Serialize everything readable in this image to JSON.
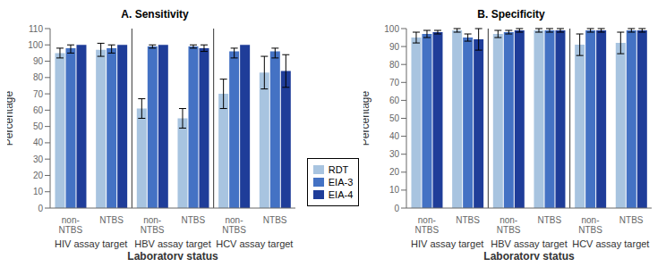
{
  "chart_data": [
    {
      "type": "bar",
      "title": "A. Sensitivity",
      "ylabel": "Percentage",
      "xlabel": "Laboratory status",
      "categories": [
        "non-\nNTBS",
        "NTBS",
        "non-\nNTBS",
        "NTBS",
        "non-\nNTBS",
        "NTBS"
      ],
      "annotations": [
        "HIV assay target",
        "HBV assay target",
        "HCV assay target"
      ],
      "series": [
        {
          "name": "RDT",
          "color": "#a8c4e0",
          "values": [
            95,
            97,
            61,
            55,
            70,
            83
          ],
          "yerr_lo": [
            3,
            4,
            6,
            6,
            9,
            10
          ],
          "yerr_hi": [
            3,
            4,
            6,
            6,
            9,
            10
          ]
        },
        {
          "name": "EIA-3",
          "color": "#4472c4",
          "values": [
            98,
            98,
            99,
            99,
            96,
            96
          ],
          "yerr_lo": [
            3,
            3,
            1,
            1,
            4,
            4
          ],
          "yerr_hi": [
            2,
            2,
            1,
            1,
            2,
            2
          ]
        },
        {
          "name": "EIA-4",
          "color": "#1f3d99",
          "values": [
            100,
            100,
            100,
            98,
            100,
            84
          ],
          "yerr_lo": [
            0,
            0,
            0,
            2,
            0,
            10
          ],
          "yerr_hi": [
            0,
            0,
            0,
            2,
            0,
            10
          ]
        }
      ],
      "ylim": [
        0,
        110
      ],
      "yticks": [
        0,
        10,
        20,
        30,
        40,
        50,
        60,
        70,
        80,
        90,
        100,
        110
      ],
      "grid": false,
      "legend": "lower right"
    },
    {
      "type": "bar",
      "title": "B. Specificity",
      "ylabel": "Percentage",
      "xlabel": "Laboratory status",
      "categories": [
        "non-\nNTBS",
        "NTBS",
        "non-\nNTBS",
        "NTBS",
        "non-\nNTBS",
        "NTBS"
      ],
      "annotations": [
        "HIV assay target",
        "HBV assay target",
        "HCV assay target"
      ],
      "series": [
        {
          "name": "RDT",
          "color": "#a8c4e0",
          "values": [
            95,
            99,
            97,
            99,
            91,
            92
          ],
          "yerr_lo": [
            3,
            1,
            2,
            1,
            6,
            6
          ],
          "yerr_hi": [
            3,
            1,
            2,
            1,
            6,
            6
          ]
        },
        {
          "name": "EIA-3",
          "color": "#4472c4",
          "values": [
            97,
            95,
            98,
            99,
            99,
            99
          ],
          "yerr_lo": [
            2,
            2,
            1,
            1,
            1,
            1
          ],
          "yerr_hi": [
            2,
            2,
            1,
            1,
            1,
            1
          ]
        },
        {
          "name": "EIA-4",
          "color": "#1f3d99",
          "values": [
            98,
            94,
            99,
            99,
            99,
            99
          ],
          "yerr_lo": [
            1,
            6,
            1,
            1,
            1,
            1
          ],
          "yerr_hi": [
            1,
            6,
            1,
            1,
            1,
            1
          ]
        }
      ],
      "ylim": [
        0,
        100
      ],
      "yticks": [
        0,
        10,
        20,
        30,
        40,
        50,
        60,
        70,
        80,
        90,
        100
      ],
      "grid": false
    }
  ]
}
